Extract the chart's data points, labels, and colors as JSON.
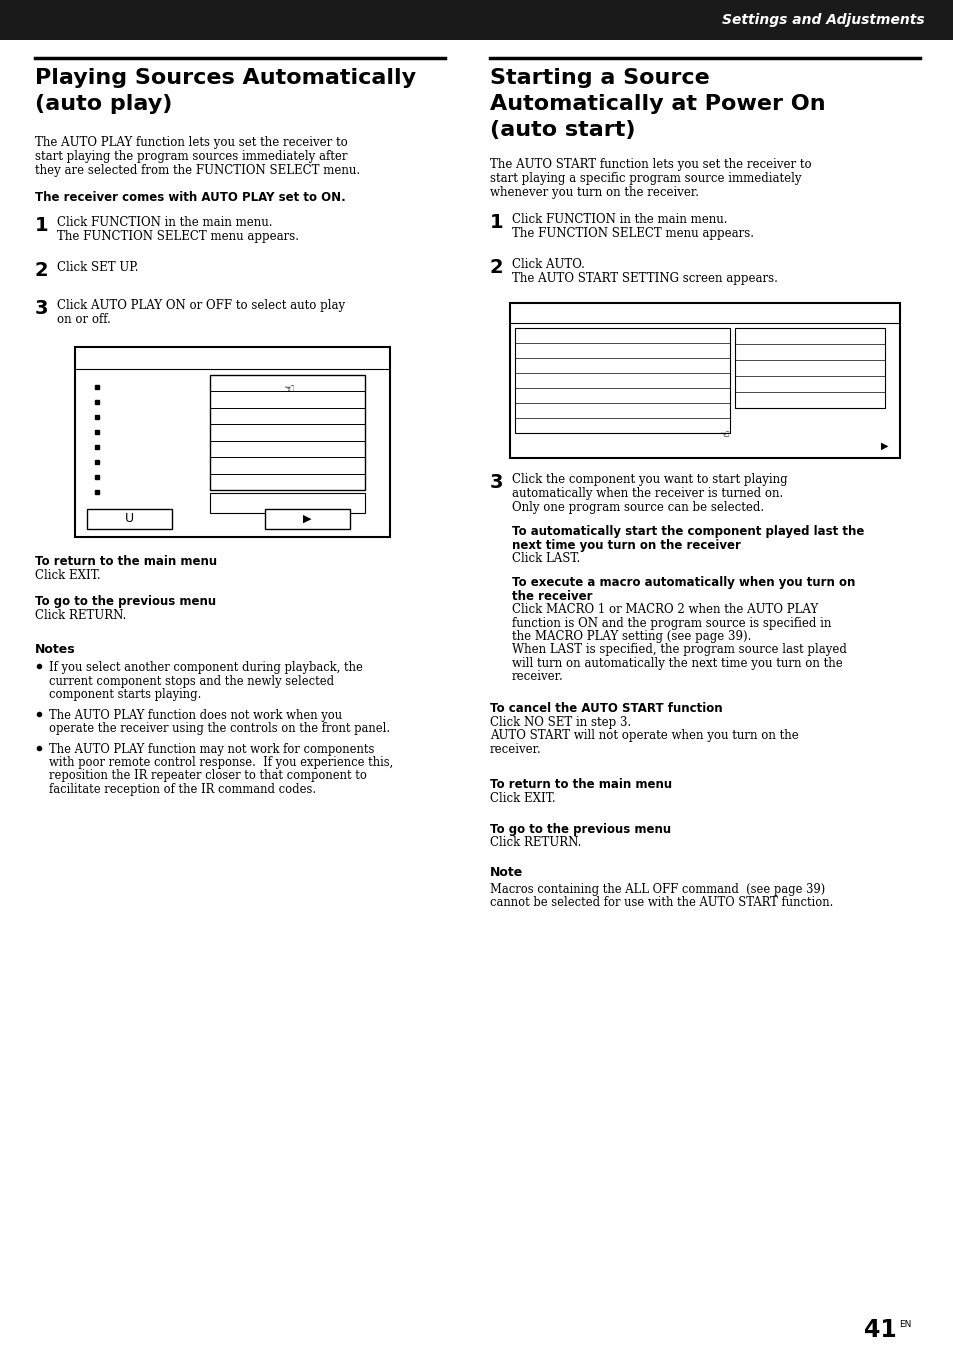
{
  "page_bg": "#ffffff",
  "header_bg": "#1a1a1a",
  "header_text": "Settings and Adjustments",
  "header_text_color": "#ffffff",
  "page_number": "41",
  "page_number_super": "EN",
  "left_title1": "Playing Sources Automatically",
  "left_title2": "(auto play)",
  "left_intro": [
    "The AUTO PLAY function lets you set the receiver to",
    "start playing the program sources immediately after",
    "they are selected from the FUNCTION SELECT menu."
  ],
  "left_bold_note": "The receiver comes with AUTO PLAY set to ON.",
  "left_step1": [
    "Click FUNCTION in the main menu.",
    "The FUNCTION SELECT menu appears."
  ],
  "left_step2": [
    "Click SET UP."
  ],
  "left_step3": [
    "Click AUTO PLAY ON or OFF to select auto play",
    "on or off."
  ],
  "left_return_bold": "To return to the main menu",
  "left_return_text": "Click EXIT.",
  "left_prev_bold": "To go to the previous menu",
  "left_prev_text": "Click RETURN.",
  "left_notes_title": "Notes",
  "left_notes": [
    [
      "If you select another component during playback, the",
      "current component stops and the newly selected",
      "component starts playing."
    ],
    [
      "The AUTO PLAY function does not work when you",
      "operate the receiver using the controls on the front panel."
    ],
    [
      "The AUTO PLAY function may not work for components",
      "with poor remote control response.  If you experience this,",
      "reposition the IR repeater closer to that component to",
      "facilitate reception of the IR command codes."
    ]
  ],
  "right_title1": "Starting a Source",
  "right_title2": "Automatically at Power On",
  "right_title3": "(auto start)",
  "right_intro": [
    "The AUTO START function lets you set the receiver to",
    "start playing a specific program source immediately",
    "whenever you turn on the receiver."
  ],
  "right_step1": [
    "Click FUNCTION in the main menu.",
    "The FUNCTION SELECT menu appears."
  ],
  "right_step2": [
    "Click AUTO.",
    "The AUTO START SETTING screen appears."
  ],
  "right_step3": [
    "Click the component you want to start playing",
    "automatically when the receiver is turned on.",
    "Only one program source can be selected."
  ],
  "right_bold1": [
    "To automatically start the component played last the",
    "next time you turn on the receiver"
  ],
  "right_text1": "Click LAST.",
  "right_bold2": [
    "To execute a macro automatically when you turn on",
    "the receiver"
  ],
  "right_text2": [
    "Click MACRO 1 or MACRO 2 when the AUTO PLAY",
    "function is ON and the program source is specified in",
    "the MACRO PLAY setting (see page 39).",
    "When LAST is specified, the program source last played",
    "will turn on automatically the next time you turn on the",
    "receiver."
  ],
  "right_cancel_bold": "To cancel the AUTO START function",
  "right_cancel_text": [
    "Click NO SET in step 3.",
    "AUTO START will not operate when you turn on the",
    "receiver."
  ],
  "right_return_bold": "To return to the main menu",
  "right_return_text": "Click EXIT.",
  "right_prev_bold": "To go to the previous menu",
  "right_prev_text": "Click RETURN.",
  "right_note_title": "Note",
  "right_note_text": [
    "Macros containing the ALL OFF command  (see page 39)",
    "cannot be selected for use with the AUTO START function."
  ]
}
